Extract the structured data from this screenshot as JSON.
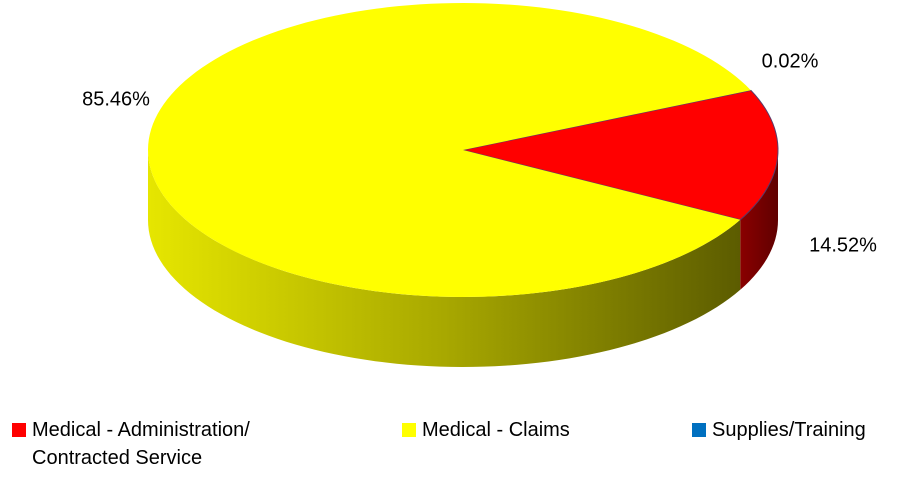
{
  "chart_data": {
    "type": "pie",
    "categories": [
      "Supplies/Training",
      "Medical - Administration/ Contracted Service",
      "Medical - Claims"
    ],
    "values": [
      0.02,
      14.52,
      85.46
    ],
    "value_labels": [
      "0.02%",
      "14.52%",
      "85.46%"
    ],
    "colors": [
      "#0070c0",
      "#ff0000",
      "#ffff00"
    ],
    "legend": "bottom"
  }
}
